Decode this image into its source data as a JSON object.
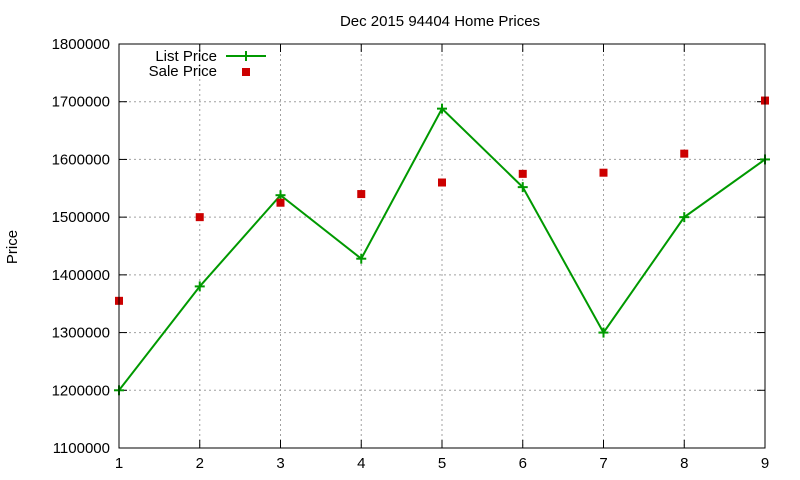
{
  "chart_data": {
    "type": "line",
    "title": "Dec 2015 94404 Home Prices",
    "xlabel": "",
    "ylabel": "Price",
    "x": [
      1,
      2,
      3,
      4,
      5,
      6,
      7,
      8,
      9
    ],
    "xlim": [
      1,
      9
    ],
    "ylim": [
      1100000,
      1800000
    ],
    "xticks": [
      "1",
      "2",
      "3",
      "4",
      "5",
      "6",
      "7",
      "8",
      "9"
    ],
    "yticks": [
      "1100000",
      "1200000",
      "1300000",
      "1400000",
      "1500000",
      "1600000",
      "1700000",
      "1800000"
    ],
    "grid": true,
    "legend_position": "top-left",
    "series": [
      {
        "name": "List Price",
        "style": "linespoints",
        "marker": "plus",
        "color": "#009900",
        "values": [
          1200000,
          1380000,
          1538000,
          1428000,
          1688000,
          1552000,
          1300000,
          1500000,
          1600000
        ]
      },
      {
        "name": "Sale Price",
        "style": "points",
        "marker": "square",
        "color": "#cc0000",
        "values": [
          1355000,
          1500000,
          1525000,
          1540000,
          1560000,
          1575000,
          1577000,
          1610000,
          1702000
        ]
      }
    ]
  }
}
